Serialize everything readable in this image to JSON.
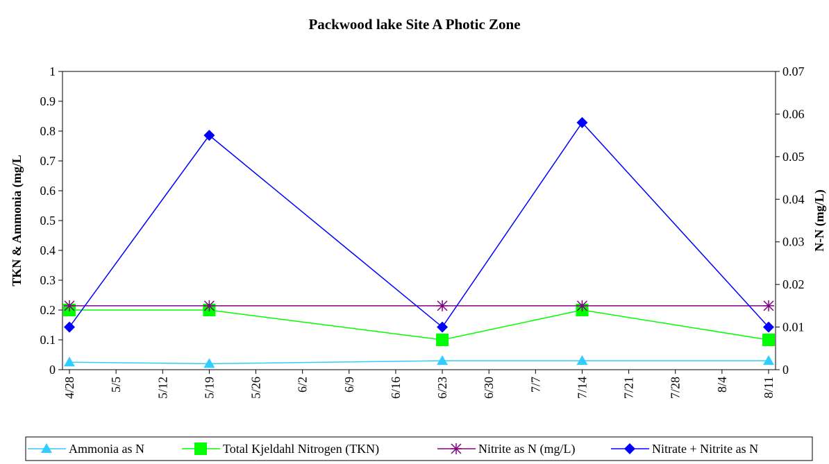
{
  "chart_data": {
    "type": "line",
    "title": "Packwood lake Site A Photic Zone",
    "y_label": "TKN & Ammonia (mg/L",
    "y2_label": "N-N (mg/L)",
    "x": [
      "4/28",
      "5/19",
      "6/23",
      "7/14",
      "8/11"
    ],
    "xlim": [
      "4/28",
      "8/11"
    ],
    "xticks": [
      "4/28",
      "5/5",
      "5/12",
      "5/19",
      "5/26",
      "6/2",
      "6/9",
      "6/16",
      "6/23",
      "6/30",
      "7/7",
      "7/14",
      "7/21",
      "7/28",
      "8/4",
      "8/11"
    ],
    "ylim": [
      0,
      1
    ],
    "yticks": [
      0,
      0.1,
      0.2,
      0.3,
      0.4,
      0.5,
      0.6,
      0.7,
      0.8,
      0.9,
      1
    ],
    "y2lim": [
      0,
      0.07
    ],
    "y2ticks": [
      0,
      0.01,
      0.02,
      0.03,
      0.04,
      0.05,
      0.06,
      0.07
    ],
    "legend": "bottom",
    "series": [
      {
        "name": "Ammonia as N",
        "color": "#33ccff",
        "marker": "triangle",
        "values": [
          0.025,
          0.02,
          0.03,
          0.03,
          0.03
        ]
      },
      {
        "name": "Total Kjeldahl Nitrogen (TKN)",
        "color": "#00ff00",
        "marker": "square",
        "values": [
          0.2,
          0.2,
          0.1,
          0.2,
          0.1
        ]
      },
      {
        "name": "Nitrite as N (mg/L)",
        "color": "#800080",
        "marker": "asterisk",
        "axis": "y2",
        "values": [
          0.015,
          0.015,
          0.015,
          0.015,
          0.015
        ]
      },
      {
        "name": "Nitrate + Nitrite as N",
        "color": "#0000ff",
        "marker": "diamond",
        "axis": "y2",
        "values": [
          0.01,
          0.055,
          0.01,
          0.058,
          0.01
        ]
      }
    ]
  }
}
